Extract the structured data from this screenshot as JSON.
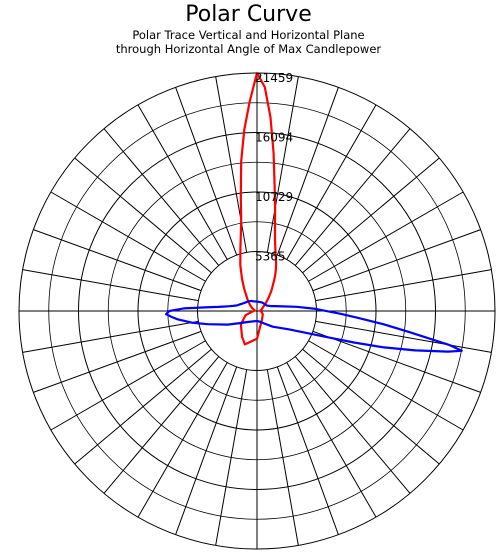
{
  "chart_data": {
    "type": "polar",
    "title": "Polar Curve",
    "subtitle_lines": [
      "Polar Trace Vertical and Horizontal Plane",
      "through Horizontal Angle of Max Candlepower"
    ],
    "r_ticks": [
      5365,
      10729,
      16094,
      21459
    ],
    "r_max": 21459,
    "angle_grid_step_deg": 10,
    "grid": true,
    "series": [
      {
        "color": "#ff0000",
        "angles_deg": [
          0,
          2,
          4,
          6,
          8,
          10,
          12,
          14,
          16,
          18,
          20,
          22,
          24,
          26,
          28,
          30,
          35,
          40,
          45,
          50,
          60,
          70,
          80,
          90,
          100,
          120,
          150,
          180,
          200,
          210,
          230,
          250,
          260,
          270,
          280,
          290,
          300,
          310,
          320,
          330,
          335,
          340,
          345,
          350,
          352,
          354,
          356,
          358
        ],
        "values": [
          21459,
          20200,
          17500,
          14300,
          11400,
          9400,
          7800,
          6700,
          6000,
          5400,
          5000,
          4600,
          4200,
          3800,
          3400,
          3000,
          2300,
          1700,
          1250,
          950,
          600,
          450,
          320,
          300,
          420,
          600,
          900,
          2500,
          3200,
          2700,
          1900,
          1100,
          500,
          300,
          200,
          250,
          500,
          800,
          1300,
          2300,
          3200,
          4400,
          5800,
          8200,
          10500,
          13600,
          16400,
          18900
        ]
      },
      {
        "color": "#0000ff",
        "angles_deg": [
          0,
          30,
          60,
          70,
          75,
          80,
          84,
          88,
          92,
          94,
          96,
          98,
          100,
          101,
          102,
          104,
          106,
          108,
          110,
          115,
          120,
          135,
          150,
          165,
          180,
          200,
          220,
          235,
          245,
          255,
          260,
          264,
          266,
          268,
          270,
          272,
          274,
          276,
          278,
          280,
          282,
          285,
          290,
          300,
          315,
          330,
          345
        ],
        "values": [
          850,
          900,
          1000,
          1300,
          1700,
          2400,
          3600,
          5300,
          7600,
          9200,
          11500,
          14000,
          17600,
          18800,
          17600,
          14700,
          11900,
          9200,
          7100,
          4500,
          3300,
          2000,
          1300,
          1000,
          900,
          1000,
          1300,
          1900,
          2900,
          4600,
          6000,
          7200,
          7700,
          8200,
          7900,
          6600,
          4700,
          3500,
          2900,
          2500,
          2200,
          1900,
          1700,
          1400,
          1200,
          1050,
          900
        ]
      }
    ]
  }
}
